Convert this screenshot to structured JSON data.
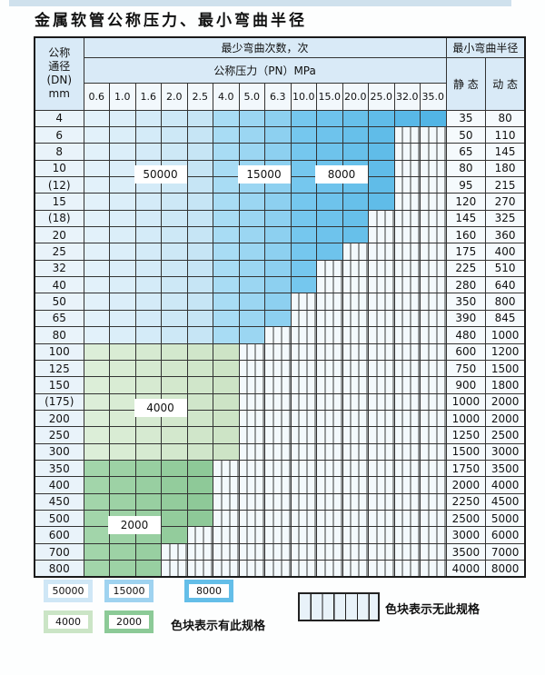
{
  "title": "金属软管公称压力、最小弯曲半径",
  "table": {
    "header": {
      "dn_lines": [
        "公称",
        "通径",
        "(DN)",
        "mm"
      ],
      "bend_times": "最少弯曲次数，次",
      "pressure": "公称压力（PN）MPa",
      "min_radius": "最小弯曲半径",
      "static": "静 态",
      "dynamic": "动 态",
      "pressure_values": [
        "0.6",
        "1.0",
        "1.6",
        "2.0",
        "2.5",
        "4.0",
        "5.0",
        "6.3",
        "10.0",
        "15.0",
        "20.0",
        "25.0",
        "32.0",
        "35.0"
      ]
    },
    "rows": [
      {
        "dn": "4",
        "static": "35",
        "dynamic": "80",
        "colored_until": 14,
        "palette": "blue"
      },
      {
        "dn": "6",
        "static": "50",
        "dynamic": "110",
        "colored_until": 12,
        "palette": "blue"
      },
      {
        "dn": "8",
        "static": "65",
        "dynamic": "145",
        "colored_until": 12,
        "palette": "blue"
      },
      {
        "dn": "10",
        "static": "80",
        "dynamic": "180",
        "colored_until": 12,
        "palette": "blue"
      },
      {
        "dn": "(12)",
        "static": "95",
        "dynamic": "215",
        "colored_until": 12,
        "palette": "blue"
      },
      {
        "dn": "15",
        "static": "120",
        "dynamic": "270",
        "colored_until": 12,
        "palette": "blue"
      },
      {
        "dn": "(18)",
        "static": "145",
        "dynamic": "325",
        "colored_until": 11,
        "palette": "blue"
      },
      {
        "dn": "20",
        "static": "160",
        "dynamic": "360",
        "colored_until": 11,
        "palette": "blue"
      },
      {
        "dn": "25",
        "static": "175",
        "dynamic": "400",
        "colored_until": 10,
        "palette": "blue"
      },
      {
        "dn": "32",
        "static": "225",
        "dynamic": "510",
        "colored_until": 9,
        "palette": "blue"
      },
      {
        "dn": "40",
        "static": "280",
        "dynamic": "640",
        "colored_until": 9,
        "palette": "blue"
      },
      {
        "dn": "50",
        "static": "350",
        "dynamic": "800",
        "colored_until": 8,
        "palette": "blue"
      },
      {
        "dn": "65",
        "static": "390",
        "dynamic": "845",
        "colored_until": 8,
        "palette": "blue"
      },
      {
        "dn": "80",
        "static": "480",
        "dynamic": "1000",
        "colored_until": 7,
        "palette": "blue"
      },
      {
        "dn": "100",
        "static": "600",
        "dynamic": "1200",
        "colored_until": 6,
        "palette": "green_light"
      },
      {
        "dn": "125",
        "static": "750",
        "dynamic": "1500",
        "colored_until": 6,
        "palette": "green_light"
      },
      {
        "dn": "150",
        "static": "900",
        "dynamic": "1800",
        "colored_until": 6,
        "palette": "green_light"
      },
      {
        "dn": "(175)",
        "static": "1000",
        "dynamic": "2000",
        "colored_until": 6,
        "palette": "green_light"
      },
      {
        "dn": "200",
        "static": "1000",
        "dynamic": "2000",
        "colored_until": 6,
        "palette": "green_light"
      },
      {
        "dn": "250",
        "static": "1250",
        "dynamic": "2500",
        "colored_until": 6,
        "palette": "green_light"
      },
      {
        "dn": "300",
        "static": "1500",
        "dynamic": "3000",
        "colored_until": 6,
        "palette": "green_light"
      },
      {
        "dn": "350",
        "static": "1750",
        "dynamic": "3500",
        "colored_until": 5,
        "palette": "green_dark"
      },
      {
        "dn": "400",
        "static": "2000",
        "dynamic": "4000",
        "colored_until": 5,
        "palette": "green_dark"
      },
      {
        "dn": "450",
        "static": "2250",
        "dynamic": "4500",
        "colored_until": 5,
        "palette": "green_dark"
      },
      {
        "dn": "500",
        "static": "2500",
        "dynamic": "5000",
        "colored_until": 5,
        "palette": "green_dark"
      },
      {
        "dn": "600",
        "static": "3000",
        "dynamic": "6000",
        "colored_until": 4,
        "palette": "green_dark"
      },
      {
        "dn": "700",
        "static": "3500",
        "dynamic": "7000",
        "colored_until": 3,
        "palette": "green_dark"
      },
      {
        "dn": "800",
        "static": "4000",
        "dynamic": "8000",
        "colored_until": 3,
        "palette": "green_dark"
      }
    ]
  },
  "region_labels": [
    {
      "text": "50000",
      "col_start": 3,
      "col_end": 4,
      "rows_above": 4
    },
    {
      "text": "15000",
      "col_start": 7,
      "col_end": 8,
      "rows_above": 4
    },
    {
      "text": "8000",
      "col_start": 10,
      "col_end": 11,
      "rows_above": 4
    },
    {
      "text": "4000",
      "col_start": 3,
      "col_end": 4,
      "rows_above": 18
    },
    {
      "text": "2000",
      "col_start": 2,
      "col_end": 3,
      "rows_above": 25
    }
  ],
  "legend": {
    "items": [
      {
        "label": "50000",
        "color": "#cfe7f6"
      },
      {
        "label": "15000",
        "color": "#9fd3f0"
      },
      {
        "label": "8000",
        "color": "#64bee8"
      },
      {
        "label": "4000",
        "color": "#cbe5c6"
      },
      {
        "label": "2000",
        "color": "#8cca97"
      }
    ],
    "has_spec_label": "色块表示有此规格",
    "no_spec_label": "色块表示无此规格"
  },
  "colors": {
    "blue": [
      "#e2f1fa",
      "#dbeef9",
      "#d4ebf8",
      "#cde8f6",
      "#c6e5f5",
      "#a8dcf4",
      "#9bd6f2",
      "#8dd0f0",
      "#75c7ee",
      "#6ec3ec",
      "#67c0ea",
      "#60bce8",
      "#59b8e7",
      "#52b5e5"
    ],
    "green_light": [
      "#dceed8",
      "#d9ecd4",
      "#d6ead1",
      "#d3e8cd",
      "#d0e6ca",
      "#cde4c6"
    ],
    "green_dark": [
      "#a2d5aa",
      "#9dd2a5",
      "#98cfa1",
      "#93cc9c",
      "#8ec998"
    ],
    "nospec_bg": "#f3f9fc",
    "grid_line": "#333333",
    "top_strip": "#cfe1ed"
  }
}
